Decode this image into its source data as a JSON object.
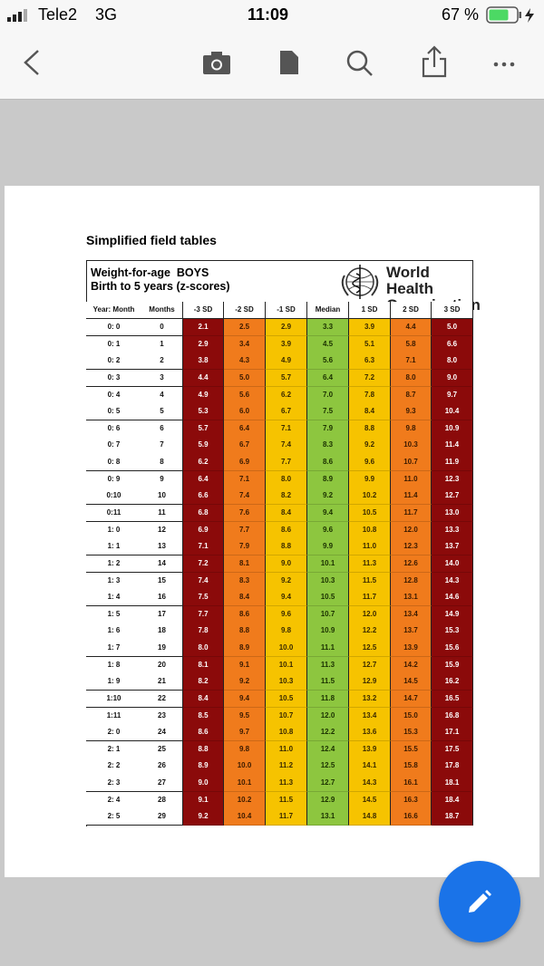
{
  "status_bar": {
    "carrier": "Tele2",
    "network": "3G",
    "time": "11:09",
    "battery": "67 %"
  },
  "document": {
    "title": "Simplified field tables",
    "table_title": "Weight-for-age  BOYS",
    "table_subtitle": "Birth to 5 years (z-scores)",
    "organization": [
      "World Health",
      "Organization"
    ],
    "table": {
      "header": [
        "Year: Month",
        "Months",
        "-3 SD",
        "-2 SD",
        "-1 SD",
        "Median",
        "1 SD",
        "2 SD",
        "3 SD"
      ],
      "rows": [
        [
          "0: 0",
          "0",
          "2.1",
          "2.5",
          "2.9",
          "3.3",
          "3.9",
          "4.4",
          "5.0"
        ],
        [
          "0: 1",
          "1",
          "2.9",
          "3.4",
          "3.9",
          "4.5",
          "5.1",
          "5.8",
          "6.6"
        ],
        [
          "0: 2",
          "2",
          "3.8",
          "4.3",
          "4.9",
          "5.6",
          "6.3",
          "7.1",
          "8.0"
        ],
        [
          "0: 3",
          "3",
          "4.4",
          "5.0",
          "5.7",
          "6.4",
          "7.2",
          "8.0",
          "9.0"
        ],
        [
          "0: 4",
          "4",
          "4.9",
          "5.6",
          "6.2",
          "7.0",
          "7.8",
          "8.7",
          "9.7"
        ],
        [
          "0: 5",
          "5",
          "5.3",
          "6.0",
          "6.7",
          "7.5",
          "8.4",
          "9.3",
          "10.4"
        ],
        [
          "0: 6",
          "6",
          "5.7",
          "6.4",
          "7.1",
          "7.9",
          "8.8",
          "9.8",
          "10.9"
        ],
        [
          "0: 7",
          "7",
          "5.9",
          "6.7",
          "7.4",
          "8.3",
          "9.2",
          "10.3",
          "11.4"
        ],
        [
          "0: 8",
          "8",
          "6.2",
          "6.9",
          "7.7",
          "8.6",
          "9.6",
          "10.7",
          "11.9"
        ],
        [
          "0: 9",
          "9",
          "6.4",
          "7.1",
          "8.0",
          "8.9",
          "9.9",
          "11.0",
          "12.3"
        ],
        [
          "0:10",
          "10",
          "6.6",
          "7.4",
          "8.2",
          "9.2",
          "10.2",
          "11.4",
          "12.7"
        ],
        [
          "0:11",
          "11",
          "6.8",
          "7.6",
          "8.4",
          "9.4",
          "10.5",
          "11.7",
          "13.0"
        ],
        [
          "1: 0",
          "12",
          "6.9",
          "7.7",
          "8.6",
          "9.6",
          "10.8",
          "12.0",
          "13.3"
        ],
        [
          "1: 1",
          "13",
          "7.1",
          "7.9",
          "8.8",
          "9.9",
          "11.0",
          "12.3",
          "13.7"
        ],
        [
          "1: 2",
          "14",
          "7.2",
          "8.1",
          "9.0",
          "10.1",
          "11.3",
          "12.6",
          "14.0"
        ],
        [
          "1: 3",
          "15",
          "7.4",
          "8.3",
          "9.2",
          "10.3",
          "11.5",
          "12.8",
          "14.3"
        ],
        [
          "1: 4",
          "16",
          "7.5",
          "8.4",
          "9.4",
          "10.5",
          "11.7",
          "13.1",
          "14.6"
        ],
        [
          "1: 5",
          "17",
          "7.7",
          "8.6",
          "9.6",
          "10.7",
          "12.0",
          "13.4",
          "14.9"
        ],
        [
          "1: 6",
          "18",
          "7.8",
          "8.8",
          "9.8",
          "10.9",
          "12.2",
          "13.7",
          "15.3"
        ],
        [
          "1: 7",
          "19",
          "8.0",
          "8.9",
          "10.0",
          "11.1",
          "12.5",
          "13.9",
          "15.6"
        ],
        [
          "1: 8",
          "20",
          "8.1",
          "9.1",
          "10.1",
          "11.3",
          "12.7",
          "14.2",
          "15.9"
        ],
        [
          "1: 9",
          "21",
          "8.2",
          "9.2",
          "10.3",
          "11.5",
          "12.9",
          "14.5",
          "16.2"
        ],
        [
          "1:10",
          "22",
          "8.4",
          "9.4",
          "10.5",
          "11.8",
          "13.2",
          "14.7",
          "16.5"
        ],
        [
          "1:11",
          "23",
          "8.5",
          "9.5",
          "10.7",
          "12.0",
          "13.4",
          "15.0",
          "16.8"
        ],
        [
          "2: 0",
          "24",
          "8.6",
          "9.7",
          "10.8",
          "12.2",
          "13.6",
          "15.3",
          "17.1"
        ],
        [
          "2: 1",
          "25",
          "8.8",
          "9.8",
          "11.0",
          "12.4",
          "13.9",
          "15.5",
          "17.5"
        ],
        [
          "2: 2",
          "26",
          "8.9",
          "10.0",
          "11.2",
          "12.5",
          "14.1",
          "15.8",
          "17.8"
        ],
        [
          "2: 3",
          "27",
          "9.0",
          "10.1",
          "11.3",
          "12.7",
          "14.3",
          "16.1",
          "18.1"
        ],
        [
          "2: 4",
          "28",
          "9.1",
          "10.2",
          "11.5",
          "12.9",
          "14.5",
          "16.3",
          "18.4"
        ],
        [
          "2: 5",
          "29",
          "9.2",
          "10.4",
          "11.7",
          "13.1",
          "14.8",
          "16.6",
          "18.7"
        ]
      ]
    }
  }
}
